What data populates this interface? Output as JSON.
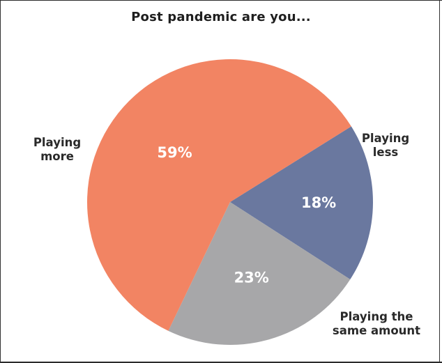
{
  "chart_data": {
    "type": "pie",
    "title": "Post pandemic are you...",
    "slices": [
      {
        "label_lines": [
          "Playing",
          "less"
        ],
        "value": 18,
        "value_label": "18%",
        "color": "#6a789f"
      },
      {
        "label_lines": [
          "Playing the",
          "same amount"
        ],
        "value": 23,
        "value_label": "23%",
        "color": "#a7a7a9"
      },
      {
        "label_lines": [
          "Playing",
          "more"
        ],
        "value": 59,
        "value_label": "59%",
        "color": "#f28463"
      }
    ]
  }
}
